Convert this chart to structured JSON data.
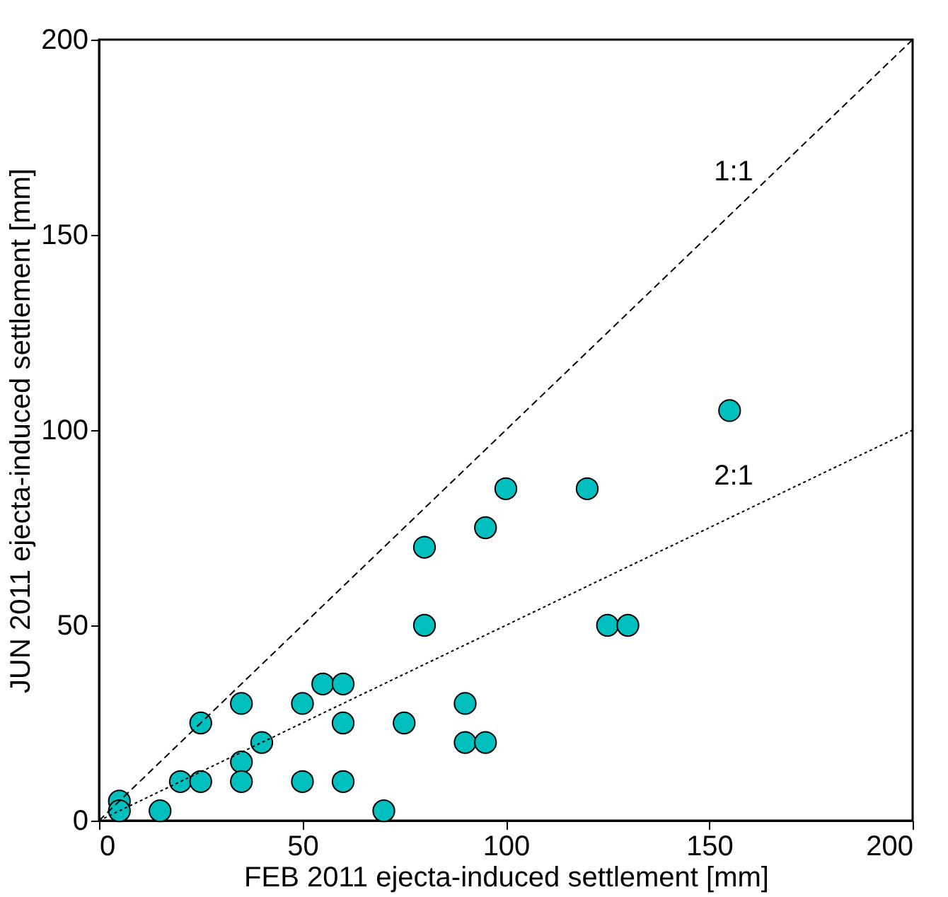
{
  "chart_data": {
    "type": "scatter",
    "xlabel": "FEB 2011 ejecta-induced settlement [mm]",
    "ylabel": "JUN 2011 ejecta-induced settlement [mm]",
    "xlim": [
      0,
      200
    ],
    "ylim": [
      0,
      200
    ],
    "xticks": [
      0,
      50,
      100,
      150,
      200
    ],
    "yticks": [
      0,
      50,
      100,
      150,
      200
    ],
    "grid": false,
    "legend": false,
    "series": [
      {
        "color": "#00bfbf",
        "marker": "circle",
        "x": [
          5,
          5,
          15,
          20,
          25,
          25,
          35,
          35,
          35,
          40,
          50,
          50,
          55,
          60,
          60,
          60,
          70,
          75,
          80,
          80,
          90,
          90,
          95,
          95,
          100,
          120,
          125,
          130,
          155
        ],
        "values": [
          5,
          2.5,
          2.5,
          10,
          10,
          25,
          30,
          15,
          10,
          20,
          30,
          10,
          35,
          35,
          25,
          10,
          2.5,
          25,
          70,
          50,
          30,
          20,
          20,
          75,
          85,
          85,
          50,
          50,
          105
        ]
      },
      {
        "type": "line",
        "name": "1:1",
        "color": "#000000",
        "line_style": "dashed",
        "x": [
          0,
          200
        ],
        "values": [
          0,
          200
        ]
      },
      {
        "type": "line",
        "name": "2:1",
        "color": "#000000",
        "line_style": "dotted",
        "x": [
          0,
          200
        ],
        "values": [
          0,
          100
        ]
      }
    ]
  }
}
